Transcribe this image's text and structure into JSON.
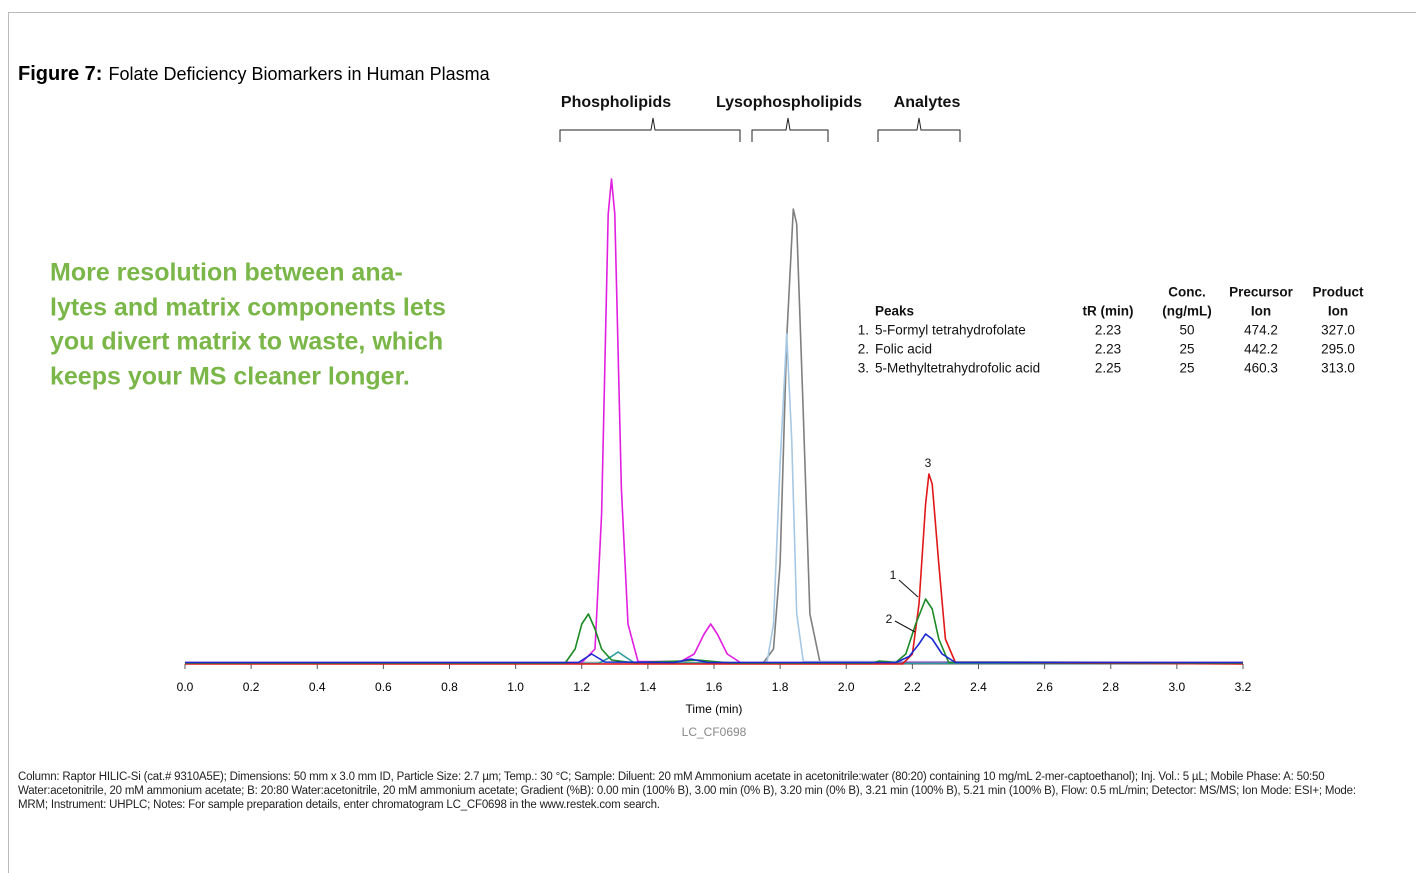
{
  "chart_data": {
    "type": "line",
    "figure_label": "Figure 7:",
    "title": "Folate Deficiency Biomarkers in Human Plasma",
    "groups": [
      "Phospholipids",
      "Lysophospholipids",
      "Analytes"
    ],
    "callout": [
      "More resolution between ana-",
      "lytes and matrix components lets",
      "you divert matrix to waste, which",
      "keeps your MS cleaner longer."
    ],
    "xlabel": "Time (min)",
    "chromatogram_id": "LC_CF0698",
    "xlim": [
      0,
      3.2
    ],
    "ylim": [
      0,
      100
    ],
    "xticks": [
      {
        "value": 0,
        "label": "0.0"
      },
      0.2,
      0.4,
      0.6,
      0.8,
      {
        "value": 1,
        "label": "1.0"
      },
      1.2,
      1.4,
      1.6,
      1.8,
      {
        "value": 2,
        "label": "2.0"
      },
      2.2,
      2.4,
      2.6,
      2.8,
      {
        "value": 3,
        "label": "3.0"
      },
      3.2
    ],
    "series": [
      {
        "color": "#7f7f7f",
        "x": [
          0,
          1.75,
          1.78,
          1.8,
          1.82,
          1.84,
          1.85,
          1.87,
          1.89,
          1.92,
          3.2
        ],
        "values": [
          0.3,
          0.3,
          3,
          20,
          65,
          91,
          88,
          50,
          10,
          0.5,
          0.3
        ]
      },
      {
        "color": "#a6c8e4",
        "x": [
          0,
          1.76,
          1.78,
          1.8,
          1.82,
          1.835,
          1.85,
          1.87,
          3.2
        ],
        "values": [
          0.2,
          0.2,
          8,
          40,
          66,
          45,
          10,
          0.5,
          0.2
        ]
      },
      {
        "color": "#e21ee0",
        "x": [
          0,
          1.2,
          1.24,
          1.26,
          1.28,
          1.29,
          1.3,
          1.32,
          1.34,
          1.37,
          1.5,
          1.54,
          1.57,
          1.59,
          1.61,
          1.64,
          1.68,
          3.2
        ],
        "values": [
          0.3,
          0.3,
          3,
          30,
          90,
          97,
          90,
          35,
          8,
          0.5,
          0.5,
          2,
          6,
          8,
          6,
          2,
          0.3,
          0.3
        ]
      },
      {
        "color": "#2a9a9a",
        "x": [
          0,
          1.25,
          1.29,
          1.31,
          1.33,
          1.36,
          3.2
        ],
        "values": [
          0.1,
          0.1,
          1.5,
          2.4,
          1.5,
          0.2,
          0.1
        ]
      },
      {
        "color": "#e01818",
        "x": [
          0,
          2.17,
          2.2,
          2.22,
          2.24,
          2.25,
          2.26,
          2.28,
          2.3,
          2.33,
          3.2
        ],
        "values": [
          0,
          0,
          2,
          12,
          32,
          38,
          36,
          20,
          5,
          0.3,
          0
        ]
      },
      {
        "color": "#1b8a24",
        "x": [
          0,
          1.15,
          1.18,
          1.2,
          1.22,
          1.24,
          1.26,
          1.29,
          1.35,
          1.5,
          1.55,
          1.65,
          2.08,
          2.1,
          2.15,
          2.18,
          2.21,
          2.24,
          2.26,
          2.28,
          2.31,
          3.2
        ],
        "values": [
          0.2,
          0.2,
          3,
          8,
          10,
          7,
          3,
          0.8,
          0.3,
          0.6,
          0.8,
          0.2,
          0.2,
          0.6,
          0.3,
          2,
          8,
          13,
          11,
          5,
          0.3,
          0.2
        ]
      },
      {
        "color": "#1a2ad0",
        "x": [
          0,
          1.19,
          1.23,
          1.27,
          1.48,
          1.53,
          1.58,
          2.15,
          2.19,
          2.22,
          2.24,
          2.26,
          2.29,
          2.33,
          3.2
        ],
        "values": [
          0.3,
          0.3,
          2,
          0.4,
          0.3,
          1,
          0.3,
          0.3,
          1.5,
          4,
          6,
          5,
          2,
          0.3,
          0.3
        ]
      }
    ],
    "peak_labels": [
      "3",
      "1",
      "2"
    ],
    "peaks_table": {
      "columns": [
        [
          "Peaks"
        ],
        [
          "tR (min)"
        ],
        [
          "Conc.",
          "(ng/mL)"
        ],
        [
          "Precursor",
          "Ion"
        ],
        [
          "Product",
          "Ion"
        ]
      ],
      "rows": [
        [
          "1.",
          "5-Formyl tetrahydrofolate",
          "2.23",
          "50",
          "474.2",
          "327.0"
        ],
        [
          "2.",
          "Folic acid",
          "2.23",
          "25",
          "442.2",
          "295.0"
        ],
        [
          "3.",
          "5-Methyltetrahydrofolic acid",
          "2.25",
          "25",
          "460.3",
          "313.0"
        ]
      ]
    },
    "footnote": "Column: Raptor HILIC-Si (cat.# 9310A5E); Dimensions: 50 mm x 3.0 mm ID, Particle Size: 2.7 µm; Temp.: 30 °C; Sample: Diluent: 20 mM Ammonium acetate in acetonitrile:water (80:20) containing 10 mg/mL 2-mer-captoethanol); Inj. Vol.: 5 µL; Mobile Phase: A: 50:50 Water:acetonitrile, 20 mM ammonium acetate; B: 20:80 Water:acetonitrile, 20 mM ammonium acetate; Gradient (%B): 0.00 min (100% B), 3.00 min (0% B), 3.20 min (0% B), 3.21 min (100% B), 5.21 min (100% B),  Flow: 0.5 mL/min; Detector: MS/MS; Ion Mode: ESI+; Mode: MRM; Instrument: UHPLC; Notes: For sample preparation details, enter chromatogram LC_CF0698 in the www.restek.com search."
  }
}
